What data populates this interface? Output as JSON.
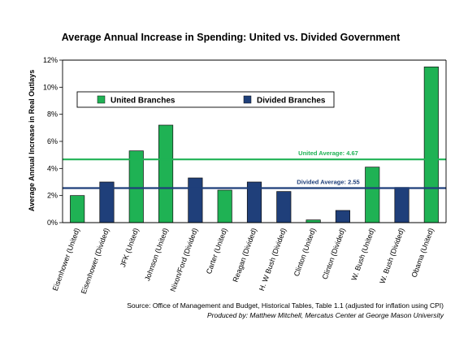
{
  "chart_data": {
    "type": "bar",
    "title": "Average Annual Increase in Spending: United vs. Divided Government",
    "ylabel": "Average Annual Increase in Real Outlays",
    "ylim": [
      0,
      12
    ],
    "yticks": [
      "0%",
      "2%",
      "4%",
      "6%",
      "8%",
      "10%",
      "12%"
    ],
    "grid": false,
    "legend_position": "top-left",
    "categories": [
      "Eisenhower (United)",
      "Eisenhower (Divided)",
      "JFK (United)",
      "Johnson (United)",
      "Nixon/Ford (Divided)",
      "Carter (United)",
      "Reagan (Divided)",
      "H. W Bush (Divided)",
      "Clinton (United)",
      "Clinton (Divided)",
      "W. Bush (United)",
      "W. Bush (Divided)",
      "Obama (United)"
    ],
    "values": [
      2.0,
      3.0,
      5.3,
      7.2,
      3.3,
      2.4,
      3.0,
      2.3,
      0.2,
      0.9,
      4.1,
      2.6,
      11.5
    ],
    "bar_group": [
      "united",
      "divided",
      "united",
      "united",
      "divided",
      "united",
      "divided",
      "divided",
      "united",
      "divided",
      "united",
      "divided",
      "united"
    ],
    "series": [
      {
        "name": "United Branches",
        "key": "united",
        "color": "#1fb254"
      },
      {
        "name": "Divided Branches",
        "key": "divided",
        "color": "#1f3f7a"
      }
    ],
    "reference_lines": [
      {
        "label": "United Average: 4.67",
        "value": 4.67,
        "color": "#1fb254"
      },
      {
        "label": "Divided Average: 2.55",
        "value": 2.55,
        "color": "#1f3f7a"
      }
    ],
    "source": "Source: Office of Management and Budget, Historical Tables, Table 1.1 (adjusted for inflation using CPI)",
    "credit": "Produced by: Matthew Mitchell, Mercatus Center at George Mason University"
  }
}
